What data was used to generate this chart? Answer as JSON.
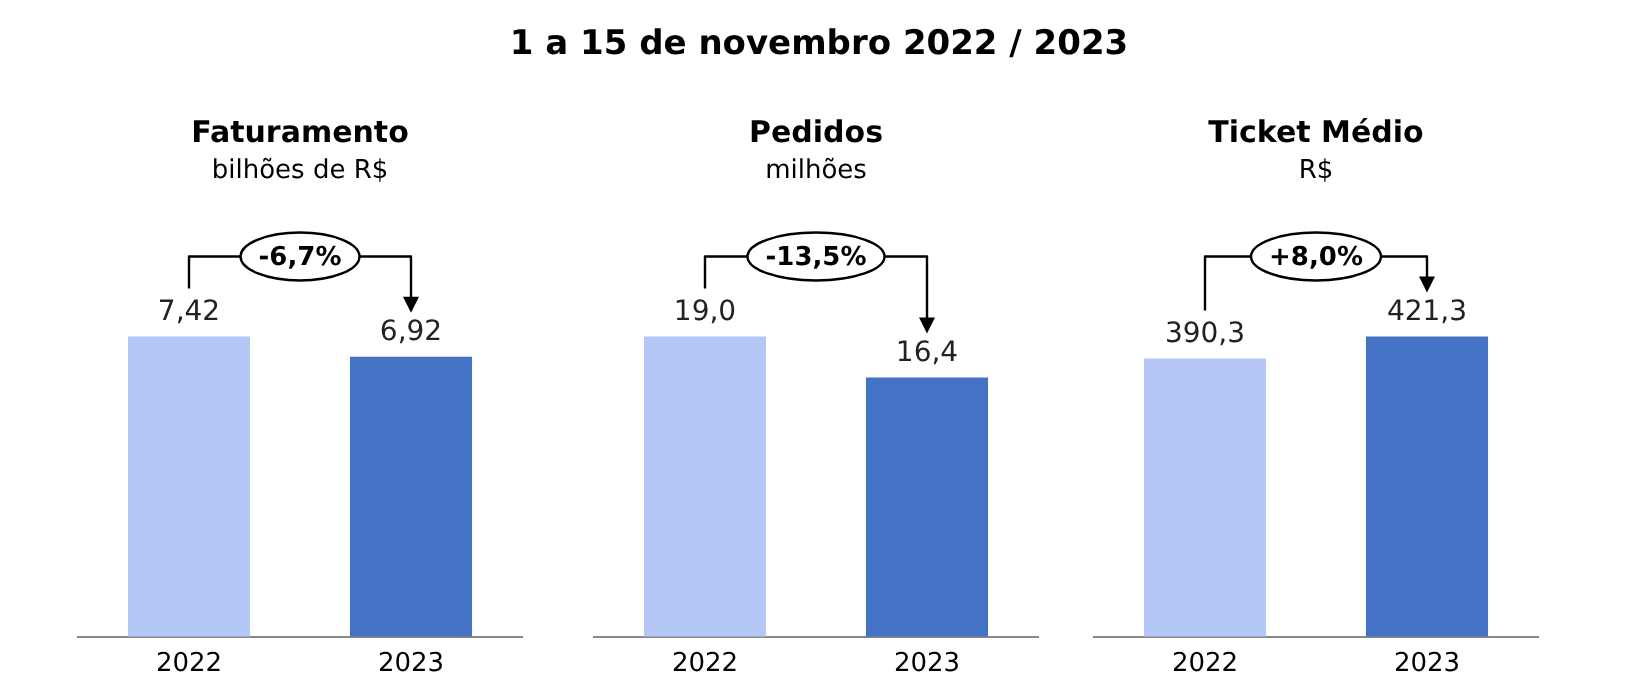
{
  "chart_data": [
    {
      "type": "other",
      "title": "1 a 15 de novembro 2022 / 2023"
    },
    {
      "type": "bar",
      "title": "Faturamento",
      "subtitle": "bilhões de R$",
      "categories": [
        "2022",
        "2023"
      ],
      "values": [
        7.42,
        6.92
      ],
      "colors": [
        "#b4c7f7",
        "#4472c4"
      ],
      "value_labels": [
        "7,42",
        "6,92"
      ],
      "annotations": [
        "-6,7%"
      ],
      "tick_labels": "x",
      "grid": false
    },
    {
      "type": "bar",
      "title": "Pedidos",
      "subtitle": "milhões",
      "categories": [
        "2022",
        "2023"
      ],
      "values": [
        19.0,
        16.4
      ],
      "colors": [
        "#b4c7f7",
        "#4472c4"
      ],
      "value_labels": [
        "19,0",
        "16,4"
      ],
      "annotations": [
        "-13,5%"
      ],
      "tick_labels": "x",
      "grid": false
    },
    {
      "type": "bar",
      "title": "Ticket Médio",
      "subtitle": "R$",
      "categories": [
        "2022",
        "2023"
      ],
      "values": [
        390.3,
        421.3
      ],
      "colors": [
        "#b4c7f7",
        "#4472c4"
      ],
      "value_labels": [
        "390,3",
        "421,3"
      ],
      "annotations": [
        "+8,0%"
      ],
      "tick_labels": "x",
      "grid": false
    }
  ]
}
